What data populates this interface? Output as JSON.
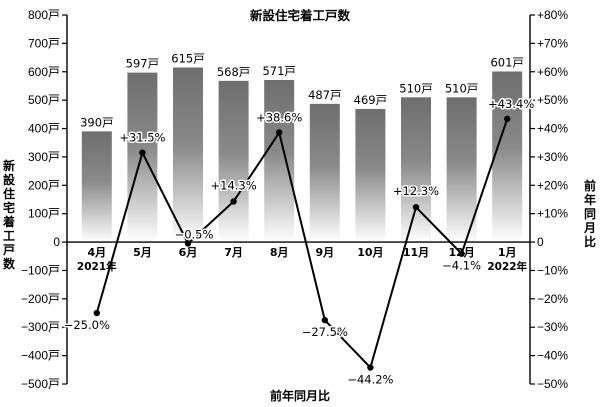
{
  "chart_data": {
    "type": "bar",
    "title": "新設住宅着工戸数",
    "left_axis_label": "新設住宅着工戸数",
    "right_axis_label": "前年同月比",
    "bottom_label": "前年同月比",
    "categories": [
      "4月",
      "5月",
      "6月",
      "7月",
      "8月",
      "9月",
      "10月",
      "11月",
      "12月",
      "1月"
    ],
    "year_labels": [
      {
        "category_index": 0,
        "text": "2021年"
      },
      {
        "category_index": 9,
        "text": "2022年"
      }
    ],
    "series": [
      {
        "type": "bar",
        "axis": "left",
        "values": [
          390,
          597,
          615,
          568,
          571,
          487,
          469,
          510,
          510,
          601
        ],
        "value_labels": [
          "390戸",
          "597戸",
          "615戸",
          "568戸",
          "571戸",
          "487戸",
          "469戸",
          "510戸",
          "510戸",
          "601戸"
        ]
      },
      {
        "type": "line",
        "axis": "right",
        "values": [
          -25.0,
          31.5,
          -0.5,
          14.3,
          38.6,
          -27.5,
          -44.2,
          12.3,
          -4.1,
          43.4
        ],
        "value_labels": [
          "−25.0%",
          "+31.5%",
          "−0.5%",
          "+14.3%",
          "+38.6%",
          "−27.5%",
          "−44.2%",
          "+12.3%",
          "−4.1%",
          "+43.4%"
        ]
      }
    ],
    "y_left": {
      "range": [
        -500,
        800
      ],
      "ticks": [
        800,
        700,
        600,
        500,
        400,
        300,
        200,
        100,
        0,
        -100,
        -200,
        -300,
        -400,
        -500
      ],
      "tick_labels": [
        "800戸",
        "700戸",
        "600戸",
        "500戸",
        "400戸",
        "300戸",
        "200戸",
        "100戸",
        "0",
        "−100戸",
        "−200戸",
        "−300戸",
        "−400戸",
        "−500戸"
      ]
    },
    "y_right": {
      "range": [
        -50,
        80
      ],
      "ticks": [
        80,
        70,
        60,
        50,
        40,
        30,
        20,
        10,
        0,
        -10,
        -20,
        -30,
        -40,
        -50
      ],
      "tick_labels": [
        "+80%",
        "+70%",
        "+60%",
        "+50%",
        "+40%",
        "+30%",
        "+20%",
        "+10%",
        "0",
        "−10%",
        "−20%",
        "−30%",
        "−40%",
        "−50%"
      ]
    },
    "grid": false,
    "legend": "none",
    "colors": {
      "bar_top": "#6e6e6e",
      "bar_bottom": "#ffffff",
      "line": "#000000"
    }
  }
}
